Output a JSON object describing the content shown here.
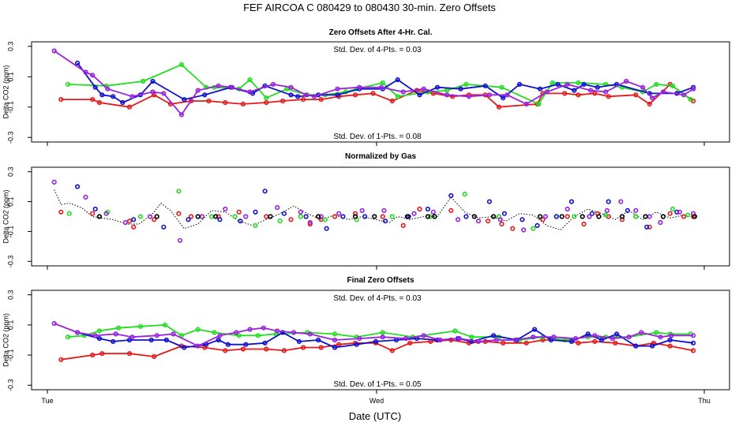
{
  "figure": {
    "title": "FEF   AIRCOA C   080429 to 080430   30-min. Zero Offsets",
    "xlabel": "Date (UTC)",
    "xticks": [
      "Tue",
      "Wed",
      "Thu"
    ],
    "xrange": [
      0,
      48
    ],
    "colors": {
      "red": "#e41a1c",
      "green": "#22dd22",
      "blue": "#1111cc",
      "purple": "#9922dd",
      "black": "#000000"
    }
  },
  "chart_data": [
    {
      "type": "line",
      "title": "Zero Offsets After 4-Hr. Cal.",
      "ylabel": "Delta CO2 (ppm)",
      "ylim": [
        -0.33,
        0.33
      ],
      "yticks": [
        "0.3",
        "0.1",
        "-0.1",
        "-0.3"
      ],
      "yticks_values": [
        0.3,
        0.1,
        -0.1,
        -0.3
      ],
      "annotation_top": "Std. Dev. of 4-Pts. =  0.03",
      "annotation_bottom": "Std. Dev. of 1-Pts. =  0.08",
      "series": [
        {
          "name": "red",
          "color": "#e41a1c",
          "x": [
            1,
            3.3,
            3.8,
            6,
            7.8,
            9,
            10.5,
            11.8,
            13,
            14.3,
            16,
            17.2,
            18.7,
            20,
            21.3,
            22.5,
            23.8,
            25.2,
            27,
            28.2,
            29.6,
            30.8,
            32,
            33,
            35.8,
            36.2,
            37.8,
            38.8,
            40,
            41,
            43,
            44,
            45.5,
            47.2
          ],
          "y": [
            -0.05,
            -0.05,
            -0.07,
            -0.1,
            -0.02,
            -0.08,
            -0.06,
            -0.06,
            -0.07,
            -0.08,
            -0.07,
            -0.06,
            -0.05,
            -0.05,
            -0.03,
            -0.02,
            -0.01,
            -0.06,
            0.01,
            -0.01,
            -0.03,
            -0.02,
            -0.02,
            -0.1,
            -0.08,
            -0.01,
            -0.01,
            -0.02,
            -0.01,
            -0.03,
            -0.02,
            -0.08,
            0.05,
            -0.06
          ]
        },
        {
          "name": "green",
          "color": "#22dd22",
          "x": [
            1.5,
            4.3,
            7,
            9.8,
            11.6,
            12.2,
            14,
            14.8,
            16,
            17.5,
            19,
            20.3,
            21.8,
            22.6,
            24.5,
            25.6,
            27.8,
            29.2,
            30.6,
            33.2,
            35.9,
            36.9,
            38.8,
            40.8,
            42,
            43.5,
            44.5,
            45.7,
            47
          ],
          "y": [
            0.05,
            0.04,
            0.07,
            0.18,
            0.03,
            0.03,
            0.02,
            0.08,
            -0.04,
            0.02,
            -0.02,
            -0.02,
            0.0,
            0.02,
            0.06,
            -0.03,
            0.0,
            0.01,
            0.05,
            0.03,
            -0.08,
            0.06,
            0.06,
            0.05,
            0.03,
            0.0,
            0.05,
            0.04,
            -0.05
          ]
        },
        {
          "name": "blue",
          "color": "#1111cc",
          "x": [
            2.2,
            3.5,
            4,
            4.8,
            5.5,
            6.8,
            7.7,
            10,
            11.5,
            13.4,
            15,
            15.9,
            17.8,
            18.3,
            19.8,
            21.2,
            22.8,
            24.5,
            25.6,
            27.2,
            28.5,
            30.2,
            32,
            33.3,
            34.5,
            36,
            37.3,
            38.5,
            39.2,
            40.2,
            41.6,
            44,
            46,
            47.2
          ],
          "y": [
            0.19,
            0.03,
            -0.02,
            -0.03,
            -0.07,
            -0.02,
            0.07,
            -0.05,
            -0.02,
            0.03,
            -0.01,
            0.04,
            -0.02,
            -0.03,
            -0.02,
            -0.02,
            0.02,
            0.02,
            0.08,
            -0.02,
            0.03,
            0.02,
            0.04,
            -0.04,
            0.05,
            0.02,
            0.05,
            0.01,
            0.05,
            0.03,
            0.05,
            -0.01,
            -0.01,
            0.03
          ]
        },
        {
          "name": "purple",
          "color": "#9922dd",
          "x": [
            0.5,
            2.8,
            3.3,
            4.4,
            6.2,
            7.7,
            8.5,
            9.8,
            11,
            12.5,
            13.5,
            14.8,
            16.5,
            17.8,
            18.9,
            19.5,
            21.2,
            22.8,
            24.4,
            26,
            27.5,
            29.2,
            30.8,
            32.3,
            33.6,
            35,
            36.5,
            38,
            39.7,
            40.8,
            42.3,
            43.5,
            44.2,
            45,
            46.5,
            47.2
          ],
          "y": [
            0.27,
            0.13,
            0.11,
            0.02,
            -0.03,
            0.0,
            -0.01,
            -0.15,
            0.01,
            0.04,
            0.03,
            0.0,
            0.05,
            0.03,
            -0.02,
            -0.03,
            0.02,
            0.03,
            0.03,
            0.0,
            0.02,
            -0.02,
            -0.03,
            -0.02,
            -0.02,
            -0.08,
            0.0,
            0.05,
            0.01,
            0.0,
            0.07,
            0.03,
            -0.04,
            0.0,
            -0.02,
            0.02
          ]
        }
      ]
    },
    {
      "type": "line",
      "title": "Normalized by Gas",
      "ylabel": "Delta CO2 (ppm)",
      "ylim": [
        -0.33,
        0.33
      ],
      "yticks": [
        "0.3",
        "0.1",
        "-0.1",
        "-0.3"
      ],
      "yticks_values": [
        0.3,
        0.1,
        -0.1,
        -0.3
      ],
      "series": [
        {
          "name": "mean",
          "color": "#000000",
          "style": "dotted",
          "x": [
            0.5,
            1,
            1.6,
            2.5,
            3.3,
            4,
            4.8,
            5.8,
            6.7,
            7.7,
            8.3,
            9,
            10,
            11,
            12,
            13,
            14,
            15,
            16,
            17,
            18,
            19,
            20,
            21,
            22,
            23,
            24,
            25,
            25.6,
            26.5,
            27.5,
            28.5,
            29.5,
            30.5,
            31.5,
            32.5,
            33.5,
            34.5,
            35.5,
            36.5,
            37.5,
            38.5,
            39.5,
            40.5,
            41.5,
            42.5,
            43.5,
            44.5,
            45.5,
            46.5,
            47.2
          ],
          "y": [
            0.18,
            0.08,
            0.09,
            0.06,
            0.0,
            -0.01,
            -0.02,
            -0.05,
            -0.05,
            0.02,
            0.09,
            0.04,
            -0.08,
            -0.05,
            0.04,
            0.03,
            -0.03,
            -0.06,
            -0.02,
            0.02,
            0.07,
            0.02,
            -0.02,
            0.01,
            -0.02,
            0.0,
            -0.02,
            -0.04,
            0.0,
            -0.02,
            0.0,
            0.0,
            0.13,
            0.03,
            -0.01,
            0.0,
            -0.03,
            0.02,
            0.01,
            -0.06,
            -0.09,
            0.0,
            0.05,
            0.02,
            -0.02,
            0.04,
            -0.02,
            0.03,
            -0.01,
            0.01,
            0.0
          ]
        },
        {
          "name": "red",
          "color": "#e41a1c",
          "x": [
            1,
            3.3,
            6,
            6.3,
            7.8,
            9.6,
            10.5,
            12.5,
            14,
            16,
            17.8,
            19.2,
            20,
            21,
            22.5,
            24.5,
            26,
            27.2,
            29.5,
            32.2,
            33.2,
            34,
            36.2,
            38,
            39.2,
            40.2,
            41,
            42,
            43,
            44,
            45.5,
            46.5,
            47.2
          ],
          "y": [
            0.03,
            0.02,
            -0.03,
            -0.07,
            -0.02,
            0.02,
            0.0,
            0.0,
            0.03,
            0.0,
            -0.02,
            -0.05,
            -0.02,
            0.0,
            0.02,
            0.0,
            -0.06,
            0.05,
            0.04,
            -0.03,
            -0.05,
            -0.08,
            -0.02,
            0.0,
            -0.05,
            0.02,
            0.0,
            -0.02,
            0.0,
            -0.07,
            0.02,
            0.0,
            0.0
          ]
        },
        {
          "name": "green",
          "color": "#22dd22",
          "x": [
            1.6,
            4.4,
            6.8,
            9.6,
            12,
            13.7,
            15.2,
            17,
            18.5,
            20.3,
            22.6,
            25.2,
            28,
            30.5,
            33,
            35.5,
            37.2,
            38.5,
            40.8,
            43,
            45.7,
            46.8
          ],
          "y": [
            0.02,
            0.03,
            0.0,
            0.17,
            0.0,
            0.0,
            -0.06,
            -0.03,
            0.0,
            -0.02,
            -0.02,
            0.0,
            0.0,
            0.15,
            0.0,
            -0.08,
            0.0,
            0.0,
            0.01,
            0.0,
            0.05,
            0.01
          ]
        },
        {
          "name": "blue",
          "color": "#1111cc",
          "x": [
            2.2,
            3.5,
            6.3,
            8.5,
            10.3,
            12.6,
            14.1,
            15.2,
            15.9,
            17.3,
            18.9,
            20.4,
            21.6,
            23.2,
            24.7,
            26.4,
            27.8,
            29.5,
            30.6,
            32.3,
            33.4,
            34.7,
            35.8,
            37.2,
            38.3,
            39.8,
            41,
            42.4,
            43.8,
            46
          ],
          "y": [
            0.2,
            0.05,
            -0.02,
            -0.07,
            -0.02,
            -0.02,
            -0.03,
            0.03,
            0.17,
            0.02,
            0.0,
            -0.08,
            0.0,
            0.0,
            -0.03,
            0.0,
            0.05,
            0.14,
            0.0,
            0.1,
            0.02,
            -0.02,
            -0.06,
            0.0,
            0.1,
            0.02,
            0.1,
            0.04,
            -0.07,
            0.03
          ]
        },
        {
          "name": "purple",
          "color": "#9922dd",
          "x": [
            0.5,
            2.8,
            4.3,
            5.7,
            7.5,
            9.7,
            11.3,
            13,
            14.5,
            16.8,
            18.5,
            19.2,
            20,
            21.3,
            23,
            24.6,
            26.8,
            28.2,
            30,
            31.5,
            33.1,
            34.8,
            36.4,
            38,
            39.6,
            40.9,
            41.9,
            43,
            44,
            44.8,
            46.2,
            47.2
          ],
          "y": [
            0.23,
            0.13,
            0.02,
            -0.04,
            0.0,
            -0.16,
            0.0,
            0.05,
            0.0,
            0.06,
            0.03,
            -0.04,
            0.0,
            0.02,
            0.04,
            0.04,
            0.02,
            0.03,
            -0.02,
            -0.03,
            -0.02,
            -0.09,
            0.0,
            0.05,
            0.0,
            0.04,
            0.1,
            0.04,
            0.0,
            -0.04,
            0.03,
            0.02
          ]
        },
        {
          "name": "black",
          "color": "#000000",
          "x": [
            3.8,
            8,
            11,
            12.3,
            16.3,
            19.8,
            22.5,
            23.9,
            26.3,
            27.8,
            28.3,
            31.2,
            32.6,
            36,
            37.6,
            39.1,
            40.3,
            42,
            43.7,
            45,
            47.3
          ],
          "y": [
            0.0,
            0.0,
            0.0,
            0.0,
            0.0,
            0.0,
            0.0,
            0.0,
            0.0,
            0.0,
            0.0,
            0.0,
            0.0,
            0.0,
            0.0,
            0.0,
            0.0,
            0.0,
            0.0,
            0.0,
            0.0
          ]
        }
      ]
    },
    {
      "type": "line",
      "title": "Final Zero Offsets",
      "ylabel": "Delta CO2 (ppm)",
      "ylim": [
        -0.33,
        0.33
      ],
      "yticks": [
        "0.3",
        "0.1",
        "-0.1",
        "-0.3"
      ],
      "yticks_values": [
        0.3,
        0.1,
        -0.1,
        -0.3
      ],
      "annotation_top": "Std. Dev. of 4-Pts. =  0.03",
      "annotation_bottom": "Std. Dev. of 1-Pts. =  0.05",
      "series": [
        {
          "name": "red",
          "color": "#e41a1c",
          "x": [
            1,
            3.3,
            4,
            6,
            7.8,
            9.8,
            11.5,
            13,
            14.3,
            16,
            17.3,
            18.7,
            20,
            21.3,
            22.5,
            24,
            25.2,
            26.5,
            28,
            29.5,
            30.8,
            32,
            33.3,
            35,
            36.2,
            37.8,
            38.8,
            40,
            41.5,
            43,
            44.3,
            45.5,
            47.2
          ],
          "y": [
            -0.13,
            -0.1,
            -0.09,
            -0.09,
            -0.11,
            -0.04,
            -0.05,
            -0.07,
            -0.06,
            -0.06,
            -0.07,
            -0.05,
            -0.05,
            -0.03,
            -0.02,
            -0.02,
            -0.07,
            -0.02,
            -0.01,
            0.0,
            -0.02,
            -0.01,
            -0.02,
            -0.02,
            0.0,
            0.0,
            -0.02,
            -0.01,
            -0.02,
            -0.04,
            -0.02,
            -0.04,
            -0.07
          ]
        },
        {
          "name": "green",
          "color": "#22dd22",
          "x": [
            1.5,
            2.7,
            3.8,
            5.2,
            6.8,
            8.6,
            9.8,
            11,
            12.2,
            14,
            15.4,
            16.7,
            19,
            21,
            22.6,
            24.5,
            26.7,
            29.8,
            31,
            33,
            34.5,
            36.2,
            37.8,
            39.5,
            40.8,
            42.5,
            44.5,
            45.5,
            47
          ],
          "y": [
            0.02,
            0.03,
            0.06,
            0.08,
            0.09,
            0.1,
            0.03,
            0.07,
            0.05,
            0.03,
            0.03,
            0.04,
            0.05,
            0.04,
            0.02,
            0.05,
            0.02,
            0.06,
            0.02,
            0.02,
            0.0,
            0.02,
            0.0,
            0.02,
            0.02,
            0.02,
            0.05,
            0.04,
            0.04
          ]
        },
        {
          "name": "blue",
          "color": "#1111cc",
          "x": [
            2.2,
            3.8,
            4.8,
            6,
            7.6,
            8.7,
            10,
            11.6,
            12.5,
            13.2,
            14.5,
            15.9,
            17.2,
            18.4,
            19.8,
            21,
            22.6,
            24,
            25.5,
            27,
            28.5,
            30,
            31,
            32.6,
            34.3,
            35.6,
            36.8,
            38.3,
            39.5,
            40.5,
            41.6,
            43,
            44.2,
            45.5,
            47.2
          ],
          "y": [
            0.05,
            0.01,
            -0.01,
            0.0,
            0.0,
            0.0,
            -0.05,
            -0.03,
            0.0,
            -0.03,
            -0.03,
            -0.02,
            0.05,
            -0.01,
            0.0,
            -0.05,
            -0.03,
            -0.01,
            0.0,
            0.01,
            0.0,
            0.01,
            -0.01,
            0.03,
            0.0,
            0.07,
            0.0,
            -0.01,
            0.04,
            0.0,
            0.04,
            -0.04,
            -0.04,
            0.0,
            -0.02
          ]
        },
        {
          "name": "purple",
          "color": "#9922dd",
          "x": [
            0.5,
            2.2,
            3.5,
            5,
            6.2,
            8,
            9.2,
            11,
            12.6,
            13.8,
            14.8,
            15.8,
            16.8,
            18,
            19.2,
            21,
            22.8,
            24.5,
            26.2,
            27.5,
            28.7,
            30.1,
            31.5,
            32.8,
            34.2,
            35.5,
            37,
            38.6,
            40,
            41.3,
            42.5,
            43.4,
            44.8,
            45.6,
            47.2
          ],
          "y": [
            0.11,
            0.05,
            0.03,
            0.04,
            0.02,
            0.03,
            0.04,
            -0.04,
            0.03,
            0.05,
            0.07,
            0.08,
            0.06,
            0.05,
            0.04,
            0.0,
            0.01,
            0.02,
            0.01,
            0.03,
            0.0,
            0.01,
            -0.01,
            0.0,
            0.0,
            0.02,
            0.02,
            0.01,
            0.03,
            0.01,
            0.02,
            0.05,
            0.02,
            0.03,
            0.03
          ]
        }
      ]
    }
  ]
}
